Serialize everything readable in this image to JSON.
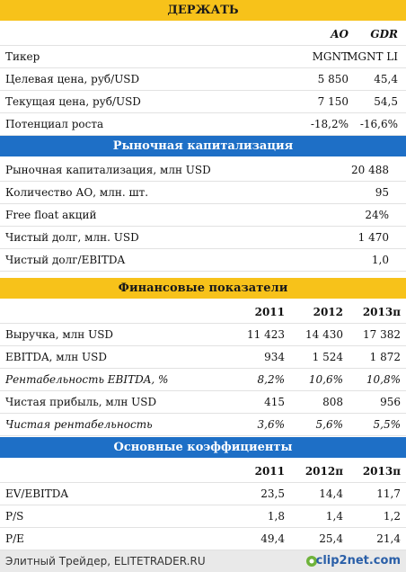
{
  "sections": [
    {
      "title": "ДЕРЖАТЬ",
      "columns": [
        "AO",
        "GDR"
      ],
      "rows": [
        [
          "Тикер",
          "MGNT",
          "MGNT LI"
        ],
        [
          "Целевая цена, руб/USD",
          "5 850",
          "45,4"
        ],
        [
          "Текущая цена, руб/USD",
          "7 150",
          "54,5"
        ],
        [
          "Потенциал роста",
          "-18,2%",
          "-16,6%"
        ]
      ]
    },
    {
      "title": "Рыночная капитализация",
      "rows": [
        [
          "Рыночная капитализация, млн USD",
          "20 488"
        ],
        [
          "Количество АО, млн. шт.",
          "95"
        ],
        [
          "Free float акций",
          "24%"
        ],
        [
          "Чистый долг, млн. USD",
          "1 470"
        ],
        [
          "Чистый долг/EBITDA",
          "1,0"
        ]
      ]
    },
    {
      "title": "Финансовые показатели",
      "columns": [
        "2011",
        "2012",
        "2013п"
      ],
      "rows": [
        [
          "Выручка, млн USD",
          "11 423",
          "14 430",
          "17 382"
        ],
        [
          "EBITDA, млн USD",
          "934",
          "1 524",
          "1 872"
        ],
        [
          "Рентабельность EBITDA, %",
          "8,2%",
          "10,6%",
          "10,8%"
        ],
        [
          "Чистая прибыль, млн USD",
          "415",
          "808",
          "956"
        ],
        [
          "Чистая рентабельность",
          "3,6%",
          "5,6%",
          "5,5%"
        ]
      ]
    },
    {
      "title": "Основные коэффициенты",
      "columns": [
        "2011",
        "2012п",
        "2013п"
      ],
      "rows": [
        [
          "EV/EBITDA",
          "23,5",
          "14,4",
          "11,7"
        ],
        [
          "P/S",
          "1,8",
          "1,4",
          "1,2"
        ],
        [
          "P/E",
          "49,4",
          "25,4",
          "21,4"
        ]
      ]
    }
  ],
  "footer": {
    "source": "Элитный Трейдер, ELITETRADER.RU",
    "logo": "clip2net.com"
  }
}
